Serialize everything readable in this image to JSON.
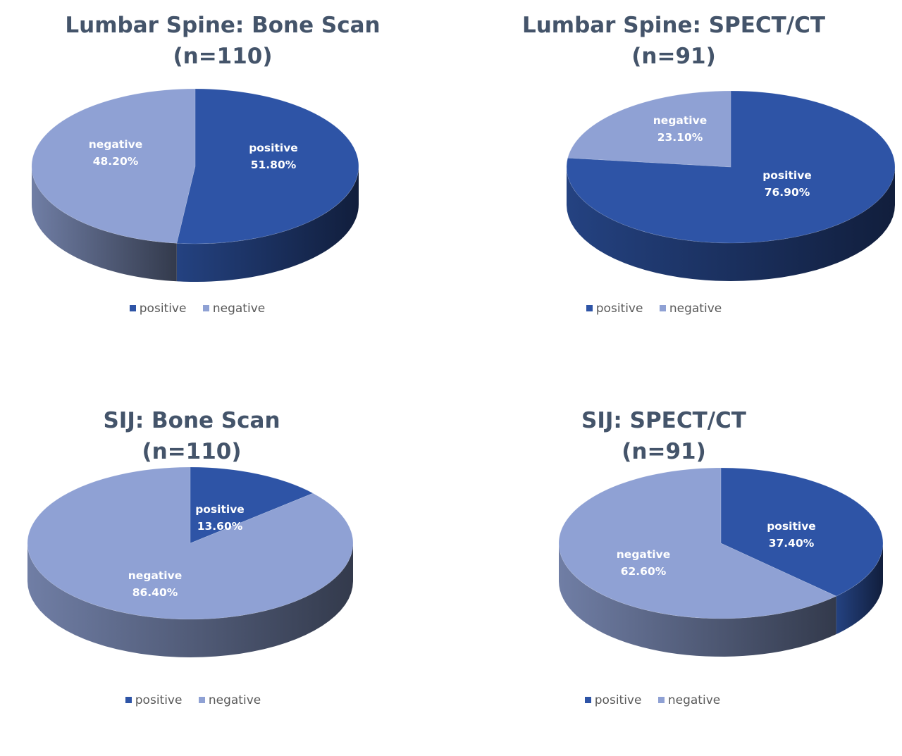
{
  "colors": {
    "positive": "#2E54A6",
    "negative": "#8FA1D4",
    "title": "#44546A",
    "label": "#ffffff"
  },
  "chart_data": [
    {
      "type": "pie",
      "title": "Lumbar Spine: Bone Scan",
      "subtitle": "(n=110)",
      "legend_position": "bottom",
      "legend": [
        "positive",
        "negative"
      ],
      "slices": [
        {
          "label": "positive",
          "value": 51.8,
          "display": "51.80%"
        },
        {
          "label": "negative",
          "value": 48.2,
          "display": "48.20%"
        }
      ]
    },
    {
      "type": "pie",
      "title": "Lumbar Spine: SPECT/CT",
      "subtitle": "(n=91)",
      "legend_position": "bottom",
      "legend": [
        "positive",
        "negative"
      ],
      "slices": [
        {
          "label": "positive",
          "value": 76.9,
          "display": "76.90%"
        },
        {
          "label": "negative",
          "value": 23.1,
          "display": "23.10%"
        }
      ]
    },
    {
      "type": "pie",
      "title": "SIJ: Bone Scan",
      "subtitle": "(n=110)",
      "legend_position": "bottom",
      "legend": [
        "positive",
        "negative"
      ],
      "slices": [
        {
          "label": "positive",
          "value": 13.6,
          "display": "13.60%"
        },
        {
          "label": "negative",
          "value": 86.4,
          "display": "86.40%"
        }
      ]
    },
    {
      "type": "pie",
      "title": "SIJ: SPECT/CT",
      "subtitle": "(n=91)",
      "legend_position": "bottom",
      "legend": [
        "positive",
        "negative"
      ],
      "slices": [
        {
          "label": "positive",
          "value": 37.4,
          "display": "37.40%"
        },
        {
          "label": "negative",
          "value": 62.6,
          "display": "62.60%"
        }
      ]
    }
  ]
}
